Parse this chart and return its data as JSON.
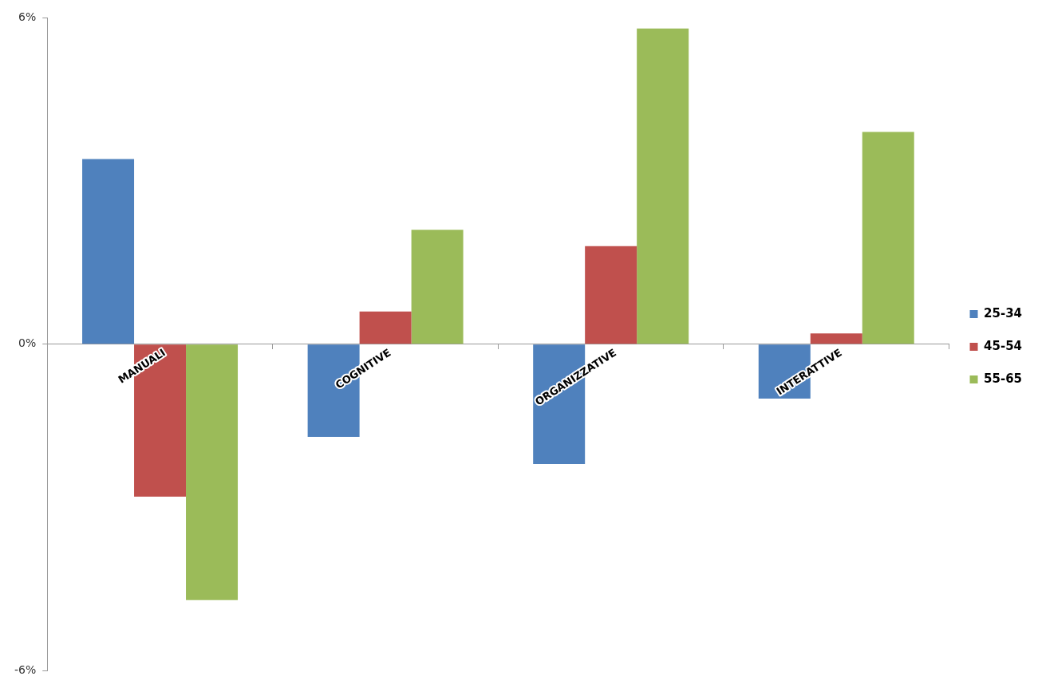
{
  "chart_data": {
    "type": "bar",
    "categories": [
      "MANUALI",
      "COGNITIVE",
      "ORGANIZZATIVE",
      "INTERATTIVE"
    ],
    "series": [
      {
        "name": "25-34",
        "color": "#4f81bd",
        "values": [
          3.4,
          -1.7,
          -2.2,
          -1.0
        ]
      },
      {
        "name": "45-54",
        "color": "#c0504d",
        "values": [
          -2.8,
          0.6,
          1.8,
          0.2
        ]
      },
      {
        "name": "55-65",
        "color": "#9bbb59",
        "values": [
          -4.7,
          2.1,
          5.8,
          3.9
        ]
      }
    ],
    "ylim": [
      -6,
      6
    ],
    "yticks": [
      {
        "value": -6,
        "label": "-6%"
      },
      {
        "value": 0,
        "label": "0%"
      },
      {
        "value": 6,
        "label": "6%"
      }
    ],
    "legend": "right"
  }
}
